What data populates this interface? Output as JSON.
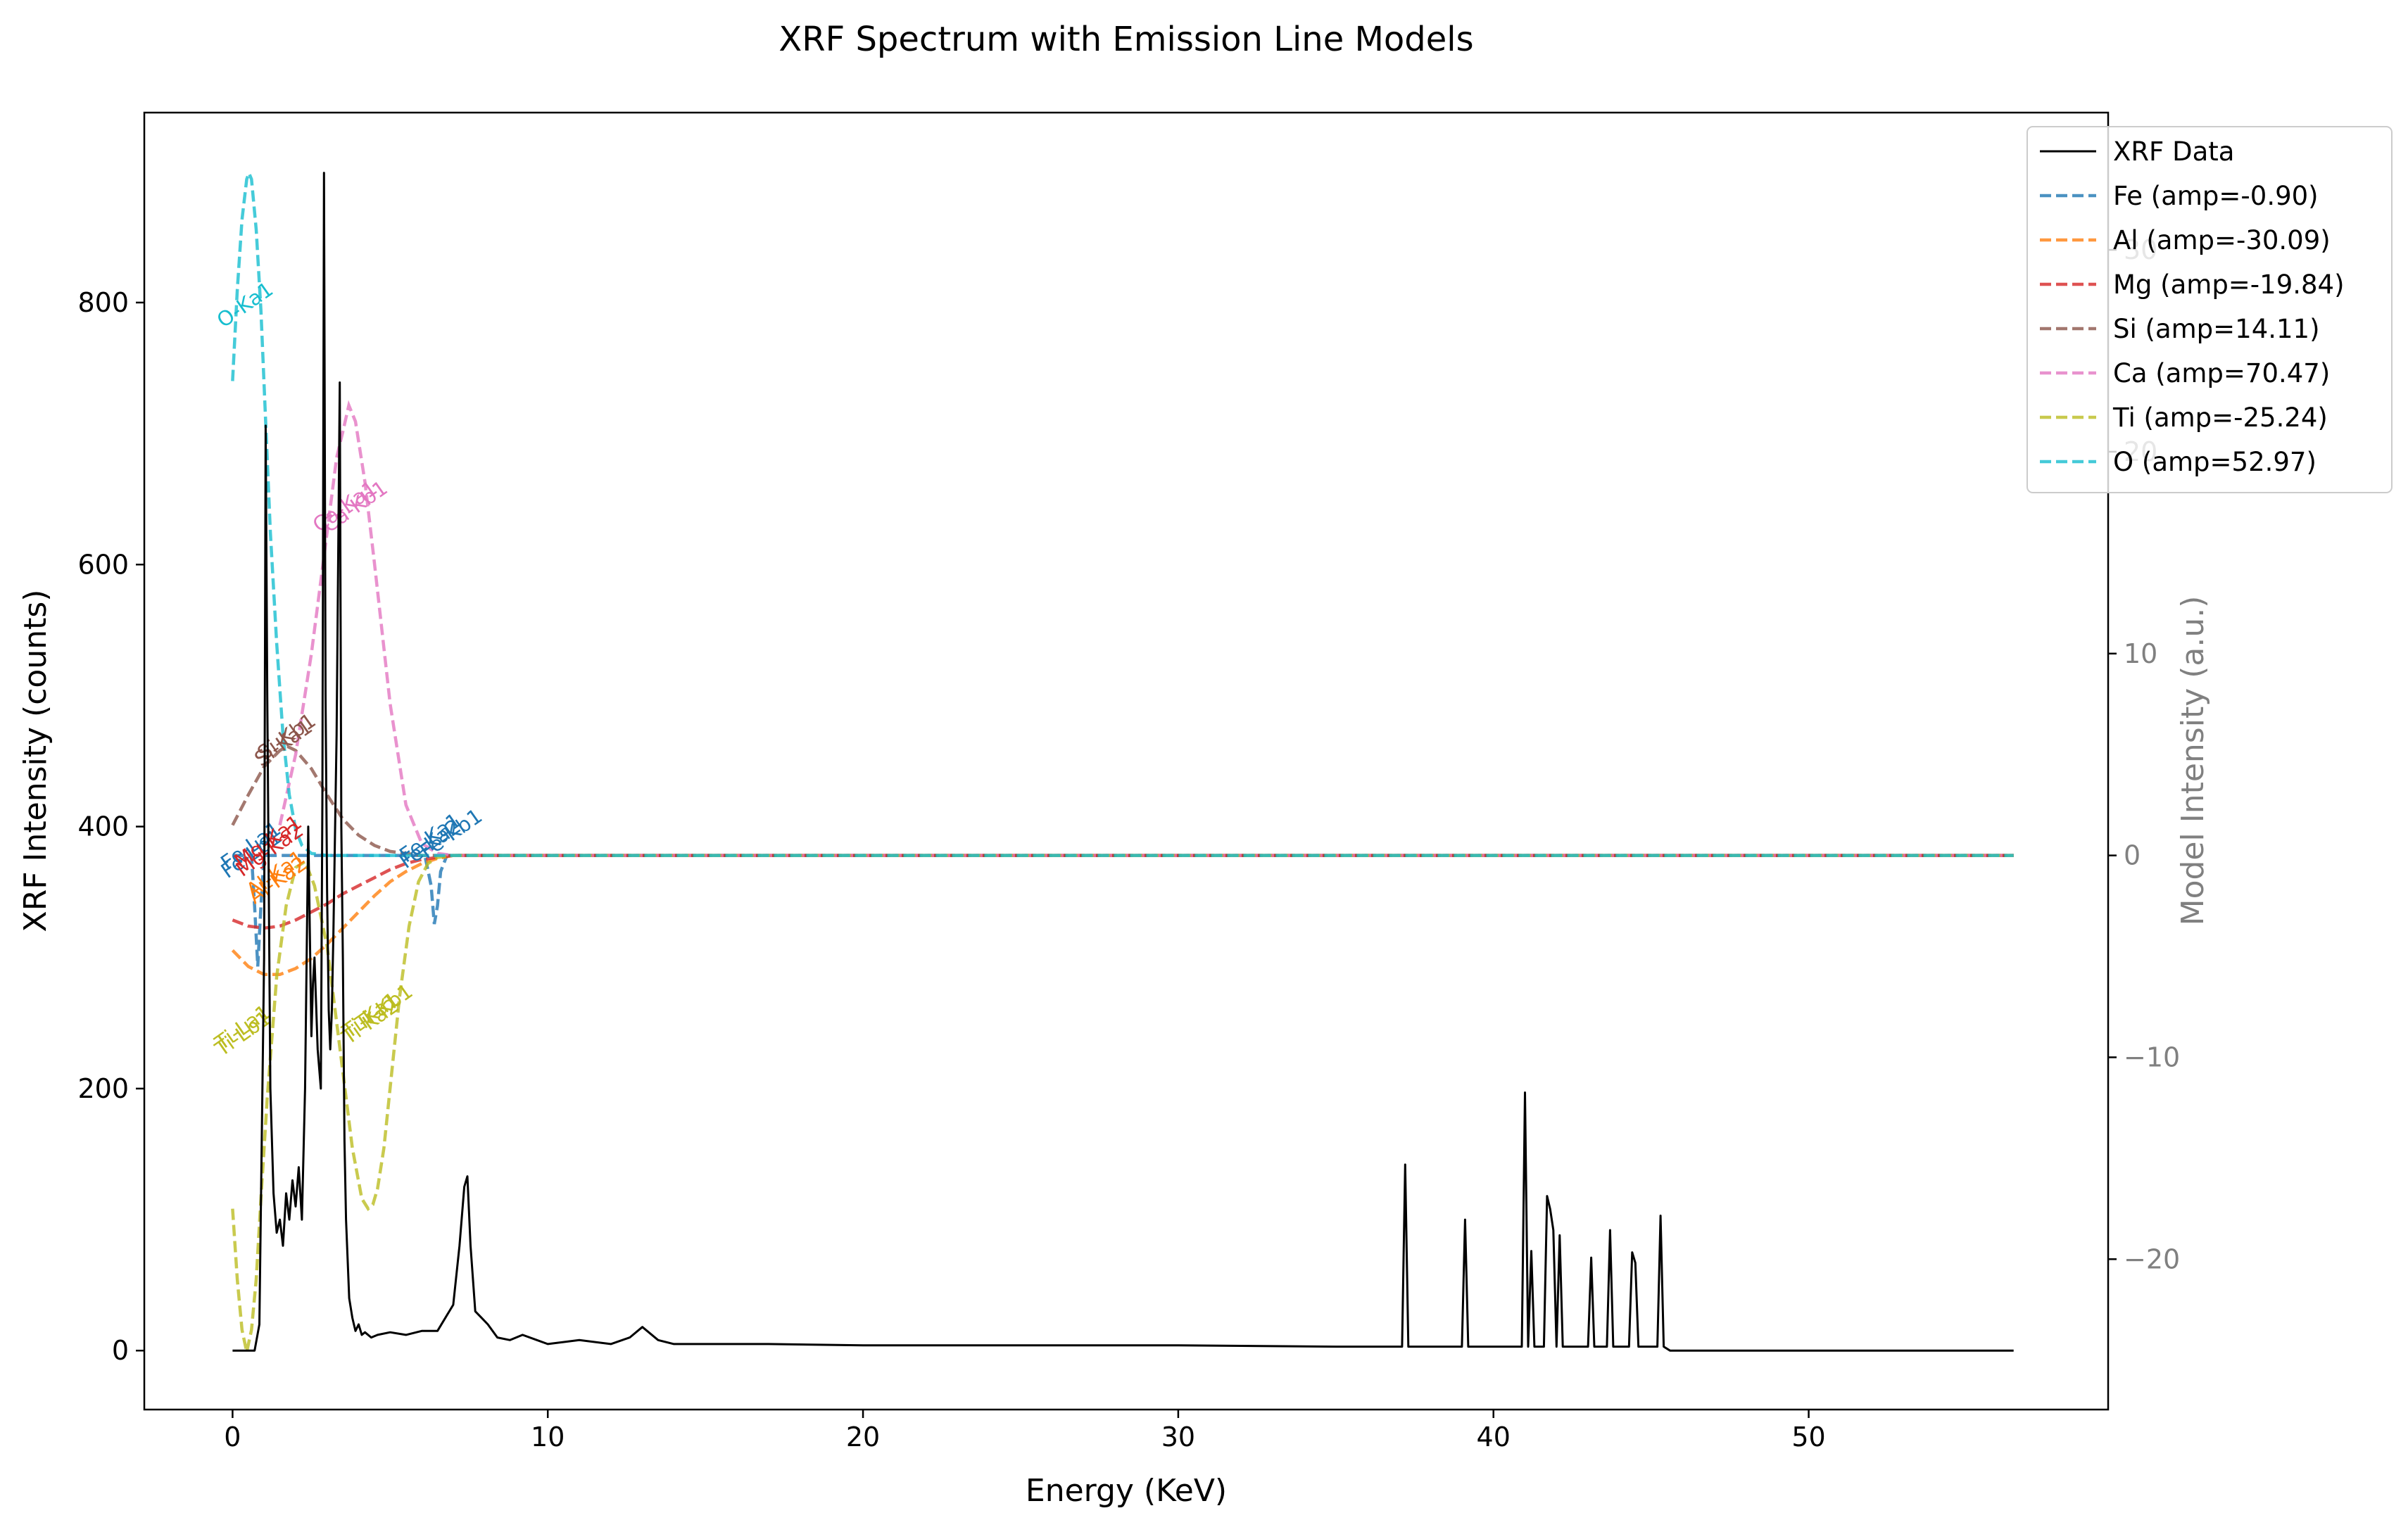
{
  "chart_data": {
    "type": "line",
    "title": "XRF Spectrum with Emission Line Models",
    "xlabel": "Energy (KeV)",
    "ylabel": "XRF Intensity (counts)",
    "ylabel_right": "Model Intensity (a.u.)",
    "xlim": [
      -2.8,
      59.5
    ],
    "ylim": [
      -45,
      945
    ],
    "ylim_right": [
      -27.45,
      36.8
    ],
    "xticks": [
      0,
      10,
      20,
      30,
      40,
      50
    ],
    "yticks": [
      0,
      200,
      400,
      600,
      800
    ],
    "yticks_right": [
      -20,
      -10,
      0,
      10,
      20,
      30
    ],
    "xtick_labels": [
      "0",
      "10",
      "20",
      "30",
      "40",
      "50"
    ],
    "ytick_labels": [
      "0",
      "200",
      "400",
      "600",
      "800"
    ],
    "ytick_labels_right": [
      "−20",
      "−10",
      "0",
      "10",
      "20",
      "30"
    ],
    "grid": false,
    "legend_position": "top-right",
    "xrf_data": {
      "name": "XRF Data",
      "color": "#000000",
      "x": [
        0,
        0.7,
        0.85,
        1.0,
        1.05,
        1.1,
        1.2,
        1.3,
        1.4,
        1.5,
        1.6,
        1.7,
        1.8,
        1.9,
        2.0,
        2.1,
        2.2,
        2.3,
        2.4,
        2.5,
        2.55,
        2.6,
        2.7,
        2.8,
        2.85,
        2.9,
        2.95,
        3.0,
        3.05,
        3.1,
        3.15,
        3.2,
        3.3,
        3.4,
        3.45,
        3.5,
        3.55,
        3.6,
        3.7,
        3.8,
        3.9,
        4.0,
        4.1,
        4.2,
        4.4,
        4.6,
        5.0,
        5.5,
        6.0,
        6.5,
        7.0,
        7.2,
        7.35,
        7.45,
        7.55,
        7.7,
        7.9,
        8.1,
        8.4,
        8.8,
        9.2,
        10.0,
        11.0,
        12.0,
        12.6,
        13.0,
        13.5,
        14.0,
        15.0,
        17.0,
        20.0,
        25.0,
        30.0,
        35.0,
        37.1,
        37.2,
        37.3,
        37.4,
        38.5,
        39.0,
        39.1,
        39.2,
        40.5,
        40.9,
        41.0,
        41.1,
        41.2,
        41.3,
        41.4,
        41.6,
        41.7,
        41.8,
        41.9,
        42.0,
        42.1,
        42.2,
        42.3,
        42.5,
        43.0,
        43.1,
        43.2,
        43.6,
        43.7,
        43.8,
        44.3,
        44.4,
        44.5,
        44.6,
        44.7,
        45.1,
        45.2,
        45.3,
        45.4,
        45.6,
        50.0,
        56.5
      ],
      "y": [
        0,
        0,
        20,
        300,
        706,
        500,
        200,
        120,
        90,
        100,
        80,
        120,
        100,
        130,
        110,
        140,
        100,
        200,
        400,
        240,
        280,
        300,
        230,
        200,
        420,
        899,
        500,
        350,
        260,
        230,
        260,
        320,
        470,
        739,
        400,
        300,
        160,
        100,
        40,
        25,
        15,
        20,
        12,
        14,
        10,
        12,
        14,
        12,
        15,
        15,
        35,
        80,
        125,
        133,
        80,
        30,
        25,
        20,
        10,
        8,
        12,
        5,
        8,
        5,
        10,
        18,
        8,
        5,
        5,
        5,
        4,
        4,
        4,
        3,
        3,
        142,
        3,
        3,
        3,
        3,
        100,
        3,
        3,
        3,
        197,
        3,
        76,
        3,
        3,
        3,
        118,
        108,
        92,
        3,
        88,
        3,
        3,
        3,
        3,
        71,
        3,
        3,
        92,
        3,
        3,
        75,
        67,
        3,
        3,
        3,
        3,
        103,
        3,
        0,
        0,
        0
      ]
    },
    "series": [
      {
        "name": "Fe (amp=-0.90)",
        "color": "#1f77b4",
        "x": [
          0,
          0.6,
          0.7,
          0.8,
          0.9,
          1.0,
          6.1,
          6.3,
          6.4,
          6.5,
          6.6,
          6.8,
          7.1,
          7.2,
          56.5
        ],
        "y": [
          0,
          0,
          -2.5,
          -5.5,
          -2.5,
          0,
          0,
          -1.5,
          -3.4,
          -2.5,
          -0.8,
          0,
          0,
          0,
          0
        ]
      },
      {
        "name": "Al (amp=-30.09)",
        "color": "#ff7f0e",
        "x": [
          0,
          0.5,
          1.0,
          1.5,
          2.0,
          2.5,
          3.0,
          3.5,
          4.0,
          4.5,
          5.0,
          5.5,
          6.0,
          6.5,
          7.0,
          56.5
        ],
        "y": [
          -4.7,
          -5.5,
          -5.9,
          -5.9,
          -5.6,
          -5.1,
          -4.4,
          -3.6,
          -2.8,
          -2.0,
          -1.3,
          -0.8,
          -0.4,
          -0.15,
          0,
          0
        ]
      },
      {
        "name": "Mg (amp=-19.84)",
        "color": "#d62728",
        "x": [
          0,
          0.5,
          1.0,
          1.5,
          2.0,
          2.5,
          3.0,
          3.5,
          4.0,
          4.5,
          5.0,
          5.5,
          6.0,
          6.5,
          7.0,
          56.5
        ],
        "y": [
          -3.2,
          -3.5,
          -3.6,
          -3.5,
          -3.2,
          -2.8,
          -2.4,
          -1.9,
          -1.5,
          -1.1,
          -0.7,
          -0.4,
          -0.2,
          -0.1,
          0,
          0
        ]
      },
      {
        "name": "Si (amp=14.11)",
        "color": "#8c564b",
        "x": [
          0,
          0.5,
          1.0,
          1.5,
          1.74,
          2.0,
          2.5,
          3.0,
          3.5,
          4.0,
          4.5,
          5.0,
          6.0,
          56.5
        ],
        "y": [
          1.5,
          3.0,
          4.4,
          5.2,
          5.4,
          5.2,
          4.3,
          3.0,
          1.8,
          1.0,
          0.5,
          0.2,
          0,
          0
        ]
      },
      {
        "name": "Ca (amp=70.47)",
        "color": "#e377c2",
        "x": [
          1.5,
          2.0,
          2.5,
          3.0,
          3.3,
          3.5,
          3.69,
          3.9,
          4.2,
          4.5,
          5.0,
          5.5,
          6.0,
          6.5,
          7.0,
          56.5
        ],
        "y": [
          1.5,
          5.0,
          10.0,
          16.0,
          19.7,
          21.0,
          22.3,
          21.5,
          18.5,
          14.5,
          7.5,
          2.5,
          0.6,
          0.1,
          0,
          0
        ]
      },
      {
        "name": "Ti (amp=-25.24)",
        "color": "#bcbd22",
        "x": [
          0,
          0.15,
          0.3,
          0.45,
          0.6,
          0.75,
          0.9,
          1.1,
          1.4,
          1.7,
          2.0,
          2.3,
          2.6,
          3.0,
          3.4,
          3.8,
          4.1,
          4.3,
          4.45,
          4.6,
          4.8,
          5.0,
          5.3,
          5.6,
          5.9,
          6.2,
          6.5,
          7.0,
          56.5
        ],
        "y": [
          -17.5,
          -21.0,
          -23.5,
          -24.6,
          -23.5,
          -21.0,
          -17.0,
          -12.0,
          -6.0,
          -2.5,
          -0.6,
          -0.3,
          -1.5,
          -4.5,
          -9.5,
          -14.5,
          -17.0,
          -17.5,
          -17.3,
          -16.5,
          -14.5,
          -11.5,
          -7.0,
          -3.5,
          -1.3,
          -0.4,
          -0.1,
          0,
          0
        ]
      },
      {
        "name": "O (amp=52.97)",
        "color": "#17becf",
        "x": [
          0,
          0.15,
          0.3,
          0.45,
          0.52,
          0.6,
          0.75,
          0.9,
          1.05,
          1.2,
          1.4,
          1.6,
          1.8,
          2.0,
          2.2,
          2.5,
          3.0,
          56.5
        ],
        "y": [
          23.5,
          28.0,
          31.5,
          33.5,
          33.8,
          33.5,
          31.0,
          27.0,
          21.5,
          16.0,
          10.5,
          6.0,
          3.0,
          1.3,
          0.5,
          0.1,
          0,
          0
        ]
      }
    ],
    "annotations": [
      {
        "text": "O-Ka1",
        "x": 0.52,
        "y": 27.0,
        "color": "#17becf"
      },
      {
        "text": "Ca-Kb1",
        "x": 4.01,
        "y": 17.0,
        "color": "#e377c2"
      },
      {
        "text": "Ca-Ka1",
        "x": 3.69,
        "y": 17.0,
        "color": "#e377c2"
      },
      {
        "text": "Si-Kb1",
        "x": 1.84,
        "y": 5.6,
        "color": "#8c564b"
      },
      {
        "text": "Si-Ka1",
        "x": 1.74,
        "y": 5.3,
        "color": "#8c564b"
      },
      {
        "text": "Fe-La1",
        "x": 0.705,
        "y": 0.2,
        "color": "#1f77b4"
      },
      {
        "text": "Fe-Lb1",
        "x": 0.72,
        "y": -0.2,
        "color": "#1f77b4"
      },
      {
        "text": "Mg-Ka1",
        "x": 1.25,
        "y": 0.4,
        "color": "#d62728"
      },
      {
        "text": "Mg-Ka2",
        "x": 1.3,
        "y": 0.0,
        "color": "#d62728"
      },
      {
        "text": "Al-Ka1",
        "x": 1.49,
        "y": -1.2,
        "color": "#ff7f0e"
      },
      {
        "text": "Al-Ka2",
        "x": 1.55,
        "y": -1.5,
        "color": "#ff7f0e"
      },
      {
        "text": "Fe-Ka1",
        "x": 6.4,
        "y": 0.6,
        "color": "#1f77b4"
      },
      {
        "text": "Fe-Ka2",
        "x": 6.39,
        "y": 0.3,
        "color": "#1f77b4"
      },
      {
        "text": "Fe-Kb1",
        "x": 7.06,
        "y": 0.8,
        "color": "#1f77b4"
      },
      {
        "text": "Ti-La1",
        "x": 0.45,
        "y": -8.8,
        "color": "#bcbd22"
      },
      {
        "text": "Ti-Lb1",
        "x": 0.46,
        "y": -9.1,
        "color": "#bcbd22"
      },
      {
        "text": "Ti-Ka1",
        "x": 4.51,
        "y": -8.2,
        "color": "#bcbd22"
      },
      {
        "text": "Ti-Ka2",
        "x": 4.5,
        "y": -8.5,
        "color": "#bcbd22"
      },
      {
        "text": "Ti-Kb1",
        "x": 4.93,
        "y": -7.8,
        "color": "#bcbd22"
      }
    ]
  }
}
